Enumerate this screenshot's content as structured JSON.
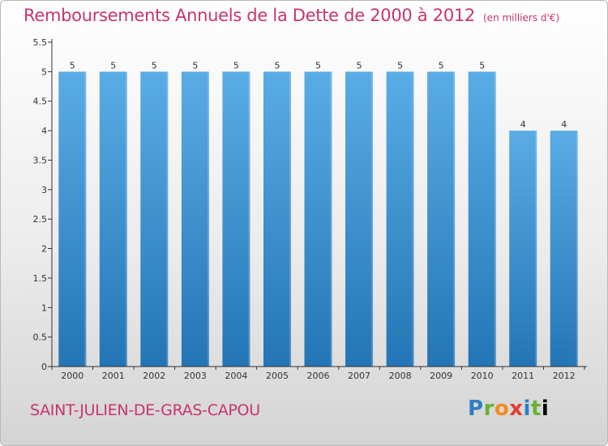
{
  "header": {
    "title": "Remboursements Annuels de la Dette de 2000 à 2012",
    "unit": "(en milliers d'€)"
  },
  "footer": {
    "commune": "SAINT-JULIEN-DE-GRAS-CAPOU",
    "logo_letters": [
      "P",
      "r",
      "o",
      "x",
      "i",
      "t",
      "i"
    ],
    "logo": "Proxiti"
  },
  "colors": {
    "bar_top": "#5aace6",
    "bar_bottom": "#2475b5",
    "title": "#c8346e",
    "axis": "#333333"
  },
  "chart_data": {
    "type": "bar",
    "title": "Remboursements Annuels de la Dette de 2000 à 2012",
    "xlabel": "",
    "ylabel": "",
    "categories": [
      "2000",
      "2001",
      "2002",
      "2003",
      "2004",
      "2005",
      "2006",
      "2007",
      "2008",
      "2009",
      "2010",
      "2011",
      "2012"
    ],
    "values": [
      5,
      5,
      5,
      5,
      5,
      5,
      5,
      5,
      5,
      5,
      5,
      4,
      4
    ],
    "data_labels": [
      "5",
      "5",
      "5",
      "5",
      "5",
      "5",
      "5",
      "5",
      "5",
      "5",
      "5",
      "4",
      "4"
    ],
    "ylim": [
      0,
      5.5
    ],
    "yticks": [
      "0",
      "0.5",
      "1",
      "1.5",
      "2",
      "2.5",
      "3",
      "3.5",
      "4",
      "4.5",
      "5",
      "5.5"
    ],
    "grid": false,
    "legend": "none"
  }
}
